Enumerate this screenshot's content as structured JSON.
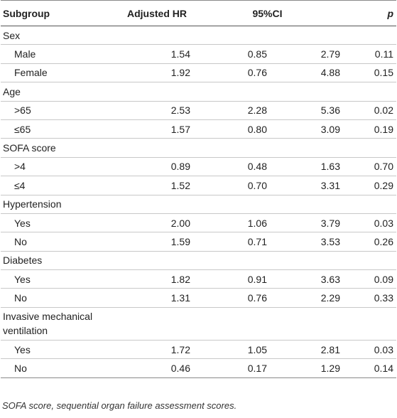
{
  "header": {
    "subgroup": "Subgroup",
    "adjusted_hr": "Adjusted HR",
    "ci": "95%CI",
    "p": "p"
  },
  "rows": [
    {
      "type": "group",
      "label": "Sex"
    },
    {
      "type": "item",
      "label": "Male",
      "hr": "1.54",
      "ci_low": "0.85",
      "ci_high": "2.79",
      "p": "0.11"
    },
    {
      "type": "item",
      "label": "Female",
      "hr": "1.92",
      "ci_low": "0.76",
      "ci_high": "4.88",
      "p": "0.15"
    },
    {
      "type": "group",
      "label": "Age"
    },
    {
      "type": "item",
      "label": ">65",
      "hr": "2.53",
      "ci_low": "2.28",
      "ci_high": "5.36",
      "p": "0.02"
    },
    {
      "type": "item",
      "label": "≤65",
      "hr": "1.57",
      "ci_low": "0.80",
      "ci_high": "3.09",
      "p": "0.19"
    },
    {
      "type": "group",
      "label": "SOFA score"
    },
    {
      "type": "item",
      "label": ">4",
      "hr": "0.89",
      "ci_low": "0.48",
      "ci_high": "1.63",
      "p": "0.70"
    },
    {
      "type": "item",
      "label": "≤4",
      "hr": "1.52",
      "ci_low": "0.70",
      "ci_high": "3.31",
      "p": "0.29"
    },
    {
      "type": "group",
      "label": "Hypertension"
    },
    {
      "type": "item",
      "label": "Yes",
      "hr": "2.00",
      "ci_low": "1.06",
      "ci_high": "3.79",
      "p": "0.03"
    },
    {
      "type": "item",
      "label": "No",
      "hr": "1.59",
      "ci_low": "0.71",
      "ci_high": "3.53",
      "p": "0.26"
    },
    {
      "type": "group",
      "label": "Diabetes"
    },
    {
      "type": "item",
      "label": "Yes",
      "hr": "1.82",
      "ci_low": "0.91",
      "ci_high": "3.63",
      "p": "0.09"
    },
    {
      "type": "item",
      "label": "No",
      "hr": "1.31",
      "ci_low": "0.76",
      "ci_high": "2.29",
      "p": "0.33"
    },
    {
      "type": "group",
      "label": "Invasive mechanical ventilation"
    },
    {
      "type": "item",
      "label": "Yes",
      "hr": "1.72",
      "ci_low": "1.05",
      "ci_high": "2.81",
      "p": "0.03"
    },
    {
      "type": "item",
      "label": "No",
      "hr": "0.46",
      "ci_low": "0.17",
      "ci_high": "1.29",
      "p": "0.14"
    }
  ],
  "footnote": "SOFA score, sequential organ failure assessment scores."
}
